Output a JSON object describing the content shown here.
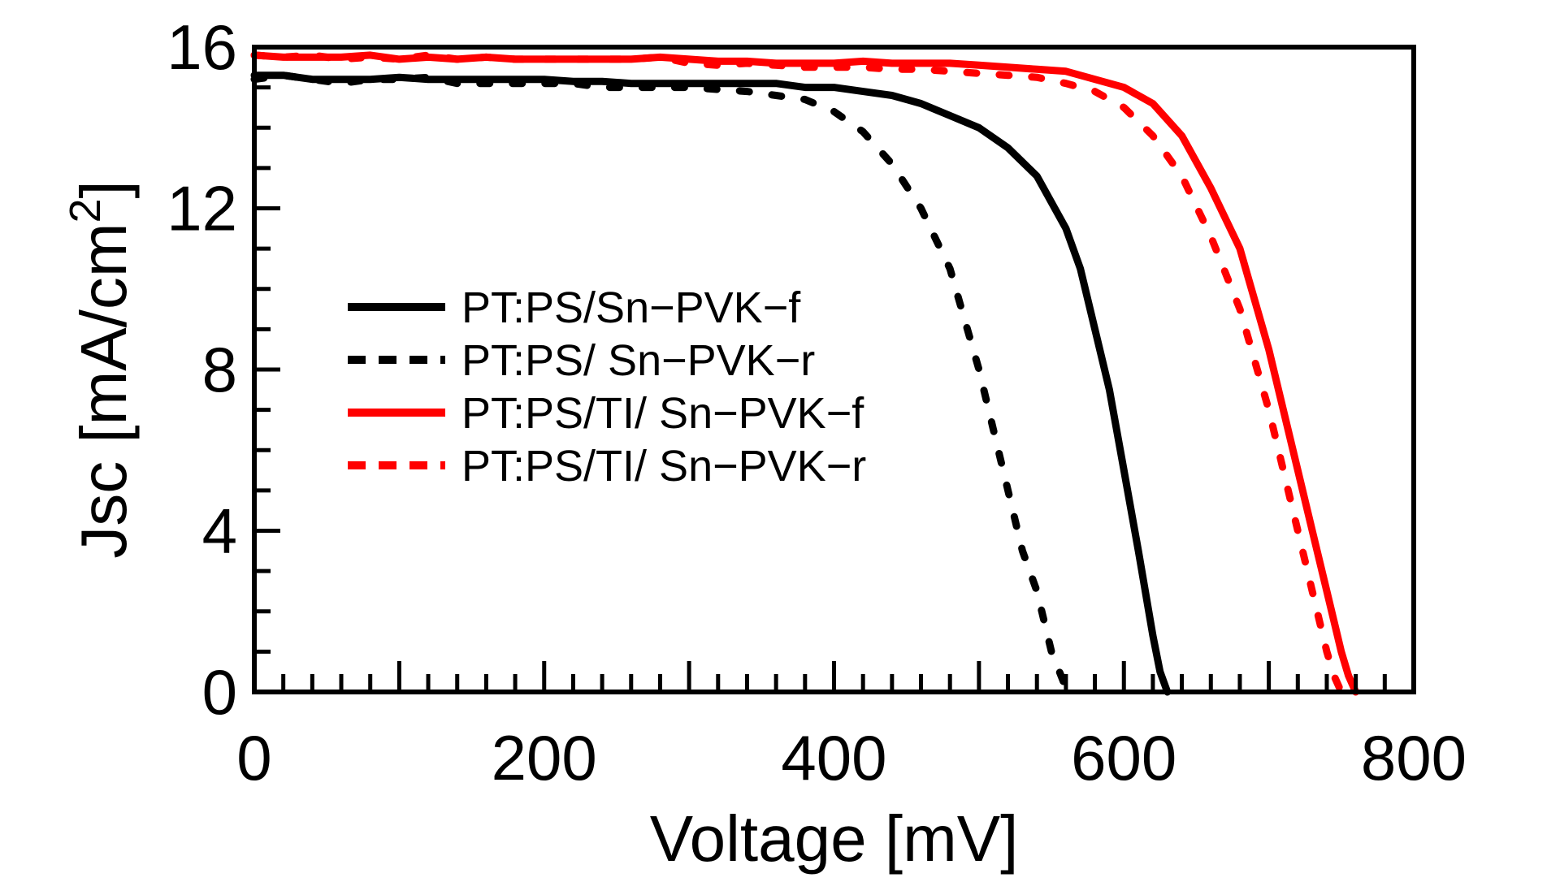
{
  "chart_data": {
    "type": "line",
    "xlabel": "Voltage [mV]",
    "ylabel_main": "Jsc [mA/cm",
    "ylabel_sup": "2",
    "ylabel_close": "]",
    "xlim": [
      0,
      800
    ],
    "ylim": [
      0,
      16
    ],
    "xticks": [
      0,
      200,
      400,
      600,
      800
    ],
    "xtick_labels": [
      "0",
      "200",
      "400",
      "600",
      "800"
    ],
    "yticks": [
      0,
      4,
      8,
      12,
      16
    ],
    "ytick_labels": [
      "0",
      "4",
      "8",
      "12",
      "16"
    ],
    "grid": false,
    "legend_position": "middle-left",
    "series": [
      {
        "name": "PT:PS/Sn−PVK−f",
        "color": "#000000",
        "style": "solid",
        "x": [
          0,
          20,
          40,
          60,
          80,
          100,
          120,
          140,
          160,
          180,
          200,
          220,
          240,
          260,
          280,
          300,
          320,
          340,
          360,
          380,
          400,
          420,
          440,
          460,
          480,
          500,
          520,
          540,
          560,
          570,
          580,
          590,
          600,
          610,
          620,
          625,
          630
        ],
        "y": [
          15.3,
          15.3,
          15.2,
          15.2,
          15.2,
          15.25,
          15.2,
          15.2,
          15.2,
          15.2,
          15.2,
          15.15,
          15.15,
          15.1,
          15.1,
          15.1,
          15.1,
          15.1,
          15.1,
          15.0,
          15.0,
          14.9,
          14.8,
          14.6,
          14.3,
          14.0,
          13.5,
          12.8,
          11.5,
          10.5,
          9.0,
          7.5,
          5.5,
          3.5,
          1.4,
          0.5,
          0.0
        ]
      },
      {
        "name": "PT:PS/ Sn−PVK−r",
        "color": "#000000",
        "style": "dashed",
        "x": [
          0,
          20,
          40,
          60,
          80,
          100,
          120,
          140,
          160,
          180,
          200,
          220,
          240,
          260,
          280,
          300,
          320,
          340,
          360,
          380,
          400,
          420,
          440,
          460,
          480,
          500,
          510,
          520,
          530,
          540,
          550,
          560,
          565
        ],
        "y": [
          15.2,
          15.3,
          15.2,
          15.1,
          15.2,
          15.2,
          15.25,
          15.1,
          15.1,
          15.1,
          15.1,
          15.1,
          15.0,
          15.0,
          15.0,
          15.0,
          14.95,
          14.9,
          14.8,
          14.7,
          14.4,
          13.9,
          13.1,
          12.0,
          10.5,
          8.0,
          6.5,
          5.0,
          3.5,
          2.5,
          1.0,
          0.1,
          0.0
        ]
      },
      {
        "name": "PT:PS/TI/ Sn−PVK−f",
        "color": "#ff0000",
        "style": "solid",
        "x": [
          0,
          20,
          40,
          60,
          80,
          100,
          120,
          140,
          160,
          180,
          200,
          220,
          240,
          260,
          280,
          300,
          320,
          340,
          360,
          380,
          400,
          420,
          440,
          460,
          480,
          500,
          520,
          540,
          560,
          580,
          600,
          620,
          640,
          660,
          680,
          700,
          720,
          730,
          740,
          750,
          755,
          760
        ],
        "y": [
          15.8,
          15.75,
          15.75,
          15.75,
          15.8,
          15.7,
          15.75,
          15.7,
          15.75,
          15.7,
          15.7,
          15.7,
          15.7,
          15.7,
          15.75,
          15.7,
          15.65,
          15.65,
          15.6,
          15.6,
          15.6,
          15.65,
          15.6,
          15.6,
          15.6,
          15.55,
          15.5,
          15.45,
          15.4,
          15.2,
          15.0,
          14.6,
          13.8,
          12.5,
          11.0,
          8.5,
          5.5,
          4.0,
          2.5,
          1.0,
          0.4,
          0.0
        ]
      },
      {
        "name": "PT:PS/TI/ Sn−PVK−r",
        "color": "#ff0000",
        "style": "dashed",
        "x": [
          0,
          20,
          40,
          60,
          80,
          100,
          120,
          140,
          160,
          180,
          200,
          220,
          240,
          260,
          280,
          300,
          320,
          340,
          360,
          380,
          400,
          420,
          440,
          460,
          480,
          500,
          520,
          540,
          560,
          580,
          600,
          620,
          640,
          660,
          680,
          700,
          710,
          720,
          730,
          740,
          745,
          750
        ],
        "y": [
          15.8,
          15.75,
          15.8,
          15.7,
          15.75,
          15.7,
          15.8,
          15.7,
          15.75,
          15.7,
          15.7,
          15.7,
          15.7,
          15.7,
          15.75,
          15.6,
          15.55,
          15.6,
          15.55,
          15.5,
          15.5,
          15.5,
          15.45,
          15.45,
          15.4,
          15.35,
          15.3,
          15.25,
          15.1,
          14.9,
          14.5,
          13.8,
          12.8,
          11.3,
          9.5,
          7.0,
          5.5,
          4.0,
          2.5,
          1.0,
          0.4,
          0.0
        ]
      }
    ]
  }
}
